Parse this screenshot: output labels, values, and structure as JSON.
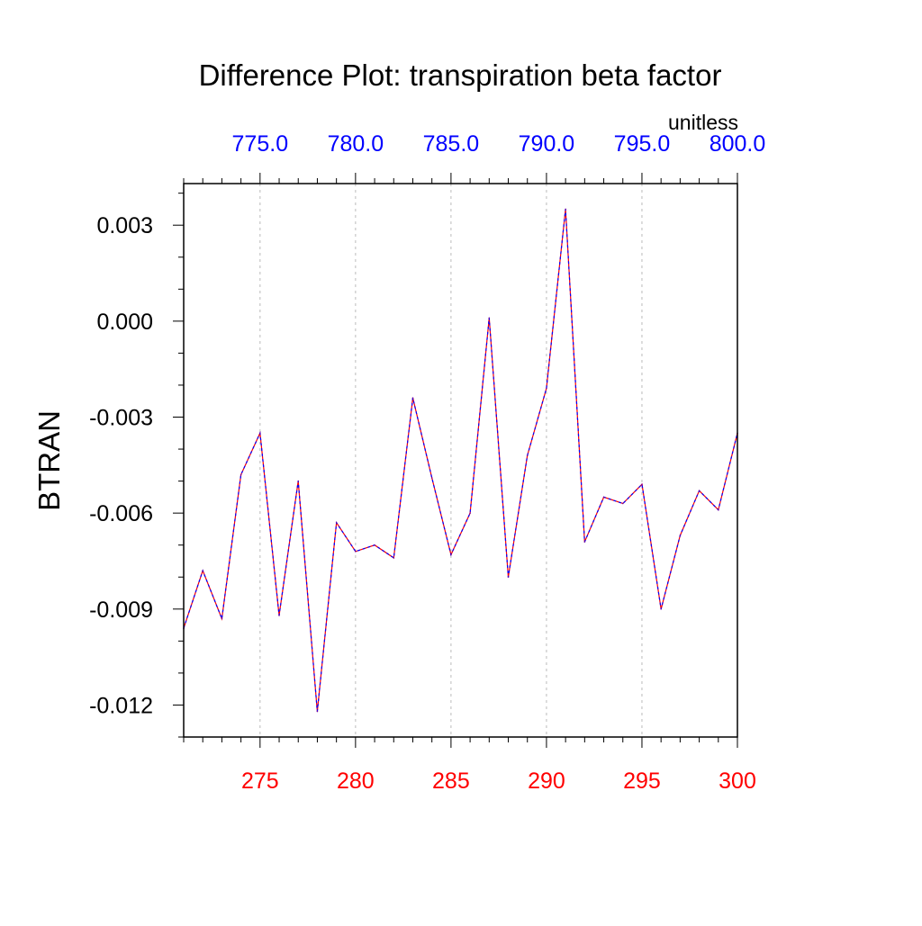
{
  "chart_data": {
    "type": "line",
    "title": "Difference Plot: transpiration beta factor",
    "ylabel": "BTRAN",
    "units": "unitless",
    "xlim": [
      271,
      300
    ],
    "ylim": [
      -0.013,
      0.0043
    ],
    "x_ticks": [
      275,
      280,
      285,
      290,
      295,
      300
    ],
    "x_tick_labels": [
      "275",
      "280",
      "285",
      "290",
      "295",
      "300"
    ],
    "x_top_tick_labels": [
      "775.0",
      "780.0",
      "785.0",
      "790.0",
      "795.0",
      "800.0"
    ],
    "y_ticks": [
      0.003,
      0.0,
      -0.003,
      -0.006,
      -0.009,
      -0.012
    ],
    "y_tick_labels": [
      "0.003",
      "0.000",
      "-0.003",
      "-0.006",
      "-0.009",
      "-0.012"
    ],
    "grid": "vertical-dashed",
    "x_axis_colors": {
      "bottom": "#ff0000",
      "top": "#0000ff"
    },
    "series": [
      {
        "color_primary": "#ff0000",
        "color_overlay": "#0000ff",
        "x": [
          271,
          272,
          273,
          274,
          275,
          276,
          277,
          278,
          279,
          280,
          281,
          282,
          283,
          284,
          285,
          286,
          287,
          288,
          289,
          290,
          291,
          292,
          293,
          294,
          295,
          296,
          297,
          298,
          299,
          300
        ],
        "values": [
          -0.0096,
          -0.0078,
          -0.0093,
          -0.0048,
          -0.0035,
          -0.0092,
          -0.005,
          -0.0122,
          -0.0063,
          -0.0072,
          -0.007,
          -0.0074,
          -0.0024,
          -0.0049,
          -0.0073,
          -0.006,
          0.0001,
          -0.008,
          -0.0042,
          -0.0021,
          0.0035,
          -0.0069,
          -0.0055,
          -0.0057,
          -0.0051,
          -0.009,
          -0.0067,
          -0.0053,
          -0.0059,
          -0.0035
        ]
      }
    ]
  }
}
